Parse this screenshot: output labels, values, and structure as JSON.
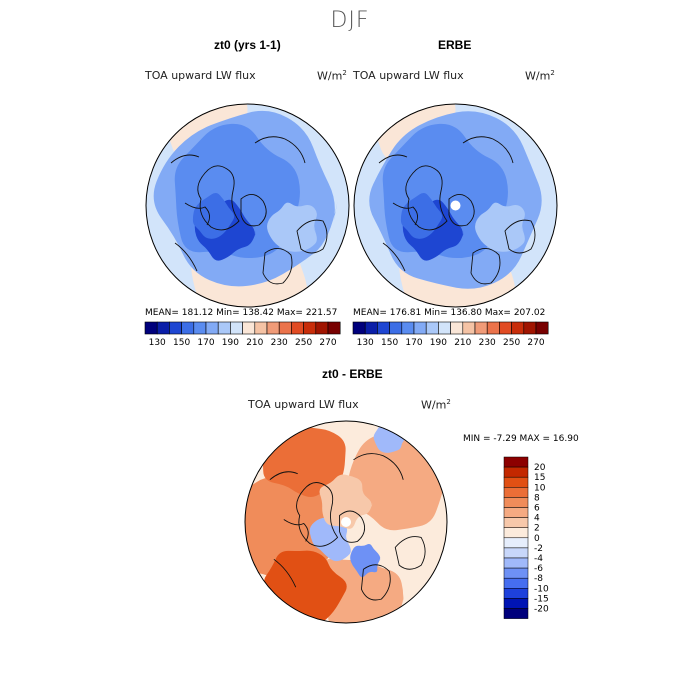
{
  "page_title": "DJF",
  "colors": {
    "seq": [
      "#00007c",
      "#0a1ea8",
      "#1e46d2",
      "#3c6ee6",
      "#5a8cf0",
      "#82aaf5",
      "#aac8f8",
      "#d2e4fa",
      "#fae6d7",
      "#f5c3a5",
      "#f09b78",
      "#eb734b",
      "#e14b23",
      "#c82d0a",
      "#a01400",
      "#780000"
    ],
    "diff": [
      "#00007c",
      "#0014b4",
      "#1e41dc",
      "#466ef0",
      "#6e91f5",
      "#a0b9fa",
      "#c8d7fa",
      "#e6eefc",
      "#fcebdc",
      "#f7c8aa",
      "#f5aa82",
      "#f08c5a",
      "#eb6e37",
      "#e15014",
      "#c32800",
      "#8c0000"
    ]
  },
  "map_data": [
    {
      "panel": "left",
      "title": "zt0 (yrs 1-1)",
      "variable": "TOA upward LW flux",
      "units": "W/m",
      "units_sup": "2",
      "stats_text": "MEAN= 181.12   Min= 138.42   Max= 221.57",
      "mean": 181.12,
      "min": 138.42,
      "max": 221.57,
      "colorbar_ticks": [
        "130",
        "150",
        "170",
        "190",
        "210",
        "230",
        "250",
        "270"
      ]
    },
    {
      "panel": "right",
      "title": "ERBE",
      "variable": "TOA upward LW flux",
      "units": "W/m",
      "units_sup": "2",
      "stats_text": "MEAN= 176.81   Min= 136.80   Max= 207.02",
      "mean": 176.81,
      "min": 136.8,
      "max": 207.02,
      "colorbar_ticks": [
        "130",
        "150",
        "170",
        "190",
        "210",
        "230",
        "250",
        "270"
      ]
    },
    {
      "panel": "difference",
      "title": "zt0 - ERBE",
      "variable": "TOA upward LW flux",
      "units": "W/m",
      "units_sup": "2",
      "stats_text": "MIN =   -7.29 MAX =   16.90",
      "min": -7.29,
      "max": 16.9,
      "colorbar_ticks": [
        "20",
        "15",
        "10",
        "8",
        "6",
        "4",
        "2",
        "0",
        "-2",
        "-4",
        "-6",
        "-8",
        "-10",
        "-15",
        "-20"
      ]
    }
  ]
}
